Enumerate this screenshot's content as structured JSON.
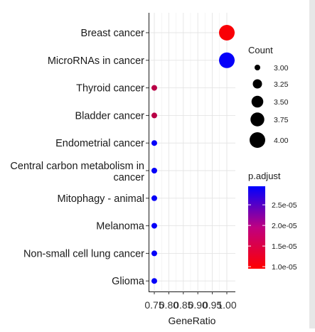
{
  "chart_data": {
    "type": "scatter",
    "xlabel": "GeneRatio",
    "xlim": [
      0.75,
      1.0
    ],
    "xticks": [
      "0.75",
      "0.80",
      "0.85",
      "0.90",
      "0.95",
      "1.00"
    ],
    "categories": [
      "Breast cancer",
      "MicroRNAs in cancer",
      "Thyroid cancer",
      "Bladder cancer",
      "Endometrial cancer",
      "Central carbon metabolism in cancer",
      "Mitophagy - animal",
      "Melanoma",
      "Non-small cell lung cancer",
      "Glioma"
    ],
    "category_lines": [
      [
        "Breast cancer"
      ],
      [
        "MicroRNAs in cancer"
      ],
      [
        "Thyroid cancer"
      ],
      [
        "Bladder cancer"
      ],
      [
        "Endometrial cancer"
      ],
      [
        "Central carbon metabolism in",
        "cancer"
      ],
      [
        "Mitophagy - animal"
      ],
      [
        "Melanoma"
      ],
      [
        "Non-small cell lung cancer"
      ],
      [
        "Glioma"
      ]
    ],
    "points": [
      {
        "category": "Breast cancer",
        "gene_ratio": 1.0,
        "count": 4,
        "p_adjust": 1e-05
      },
      {
        "category": "MicroRNAs in cancer",
        "gene_ratio": 1.0,
        "count": 4,
        "p_adjust": 2.9e-05
      },
      {
        "category": "Thyroid cancer",
        "gene_ratio": 0.75,
        "count": 3,
        "p_adjust": 1.5e-05
      },
      {
        "category": "Bladder cancer",
        "gene_ratio": 0.75,
        "count": 3,
        "p_adjust": 1.5e-05
      },
      {
        "category": "Endometrial cancer",
        "gene_ratio": 0.75,
        "count": 3,
        "p_adjust": 2.9e-05
      },
      {
        "category": "Central carbon metabolism in cancer",
        "gene_ratio": 0.75,
        "count": 3,
        "p_adjust": 2.9e-05
      },
      {
        "category": "Mitophagy - animal",
        "gene_ratio": 0.75,
        "count": 3,
        "p_adjust": 2.9e-05
      },
      {
        "category": "Melanoma",
        "gene_ratio": 0.75,
        "count": 3,
        "p_adjust": 2.9e-05
      },
      {
        "category": "Non-small cell lung cancer",
        "gene_ratio": 0.75,
        "count": 3,
        "p_adjust": 2.9e-05
      },
      {
        "category": "Glioma",
        "gene_ratio": 0.75,
        "count": 3,
        "p_adjust": 2.9e-05
      }
    ],
    "size_legend": {
      "title": "Count",
      "labels": [
        "3.00",
        "3.25",
        "3.50",
        "3.75",
        "4.00"
      ],
      "values": [
        3.0,
        3.25,
        3.5,
        3.75,
        4.0
      ],
      "range": [
        3.0,
        4.0
      ]
    },
    "color_legend": {
      "title": "p.adjust",
      "labels": [
        "2.5e-05",
        "2.0e-05",
        "1.5e-05",
        "1.0e-05"
      ],
      "values": [
        2.5e-05,
        2e-05,
        1.5e-05,
        1e-05
      ],
      "range": [
        9.5e-06,
        2.95e-05
      ],
      "low_color": "#ff0000",
      "high_color": "#0000ff"
    },
    "grid": true,
    "legend_position": "right"
  }
}
